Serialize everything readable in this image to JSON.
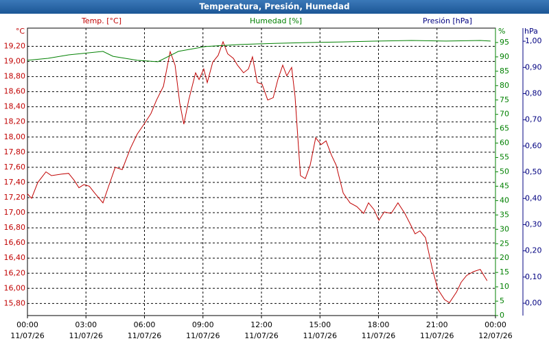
{
  "chart_data": {
    "type": "line",
    "title": "Temperatura, Presión, Humedad",
    "x": [
      0,
      0.21,
      0.53,
      0.95,
      1.23,
      1.76,
      2.11,
      2.39,
      2.64,
      2.89,
      3.17,
      3.45,
      3.87,
      4.15,
      4.5,
      4.86,
      5.28,
      5.63,
      5.98,
      6.33,
      6.62,
      6.97,
      7.32,
      7.57,
      7.81,
      8.02,
      8.27,
      8.62,
      8.8,
      9.04,
      9.22,
      9.5,
      9.78,
      10.03,
      10.27,
      10.56,
      10.77,
      11.08,
      11.33,
      11.54,
      11.79,
      12.03,
      12.32,
      12.6,
      12.84,
      13.09,
      13.3,
      13.55,
      13.72,
      14,
      14.25,
      14.5,
      14.78,
      15.06,
      15.31,
      15.59,
      15.83,
      16.19,
      16.54,
      16.89,
      17.24,
      17.49,
      17.77,
      18.02,
      18.3,
      18.65,
      19,
      19.35,
      19.63,
      19.88,
      20.13,
      20.41,
      20.76,
      21.04,
      21.39,
      21.64,
      22,
      22.24,
      22.52,
      22.87,
      23.22,
      23.57
    ],
    "series": [
      {
        "name": "Temp. [°C]",
        "unit": "°C",
        "color": "#c00000",
        "axis": "y",
        "values": [
          17.25,
          17.19,
          17.4,
          17.54,
          17.49,
          17.51,
          17.52,
          17.43,
          17.33,
          17.37,
          17.35,
          17.26,
          17.13,
          17.34,
          17.6,
          17.57,
          17.85,
          18.04,
          18.17,
          18.31,
          18.49,
          18.67,
          19.13,
          18.95,
          18.45,
          18.17,
          18.49,
          18.85,
          18.76,
          18.9,
          18.72,
          18.99,
          19.08,
          19.26,
          19.1,
          19.04,
          18.95,
          18.85,
          18.9,
          19.06,
          18.72,
          18.7,
          18.49,
          18.52,
          18.76,
          18.95,
          18.81,
          18.92,
          18.54,
          17.49,
          17.45,
          17.63,
          17.99,
          17.9,
          17.95,
          17.76,
          17.63,
          17.26,
          17.13,
          17.08,
          16.99,
          17.13,
          17.04,
          16.9,
          17.01,
          16.99,
          17.13,
          16.99,
          16.85,
          16.72,
          16.76,
          16.67,
          16.26,
          15.99,
          15.85,
          15.81,
          15.95,
          16.08,
          16.17,
          16.22,
          16.25,
          16.1
        ]
      },
      {
        "name": "Humedad [%]",
        "unit": "%",
        "color": "#008000",
        "axis": "y2",
        "x": [
          0,
          1.06,
          2.11,
          3.87,
          4.39,
          5.63,
          6.69,
          7.74,
          9.15,
          10.91,
          12.67,
          14.43,
          16.19,
          17.95,
          19.7,
          21.46,
          23.22,
          23.75
        ],
        "values": [
          88.8,
          89.5,
          90.7,
          91.9,
          90.2,
          88.8,
          88.3,
          91.9,
          93.6,
          94.3,
          94.7,
          95,
          95.2,
          95.5,
          95.7,
          95.5,
          95.7,
          95.5
        ]
      }
    ],
    "y3": {
      "name": "Presión [hPa]",
      "unit": "hPa",
      "color": "#000080",
      "lim": [
        -0.047,
        1.05
      ],
      "ticks": [
        {
          "value": 0,
          "label": "0,00"
        },
        {
          "value": 0.1,
          "label": "0,10"
        },
        {
          "value": 0.2,
          "label": "0,20"
        },
        {
          "value": 0.3,
          "label": "0,30"
        },
        {
          "value": 0.4,
          "label": "0,40"
        },
        {
          "value": 0.5,
          "label": "0,50"
        },
        {
          "value": 0.6,
          "label": "0,60"
        },
        {
          "value": 0.7,
          "label": "0,70"
        },
        {
          "value": 0.8,
          "label": "0,80"
        },
        {
          "value": 0.9,
          "label": "0,90"
        },
        {
          "value": 1,
          "label": "1,00"
        }
      ]
    },
    "xlim": [
      0,
      24
    ],
    "xticks": [
      {
        "value": 0,
        "label": "00:00"
      },
      {
        "value": 3,
        "label": "03:00"
      },
      {
        "value": 6,
        "label": "06:00"
      },
      {
        "value": 9,
        "label": "09:00"
      },
      {
        "value": 12,
        "label": "12:00"
      },
      {
        "value": 15,
        "label": "15:00"
      },
      {
        "value": 18,
        "label": "18:00"
      },
      {
        "value": 21,
        "label": "21:00"
      },
      {
        "value": 24,
        "label": "00:00"
      }
    ],
    "xtick_dates": [
      "11/07/26",
      "11/07/26",
      "11/07/26",
      "11/07/26",
      "11/07/26",
      "11/07/26",
      "11/07/26",
      "11/07/26",
      "12/07/26"
    ],
    "ylim": [
      15.64,
      19.44
    ],
    "yticks": [
      {
        "value": 15.8,
        "label": "15,80"
      },
      {
        "value": 16,
        "label": "16,00"
      },
      {
        "value": 16.2,
        "label": "16,20"
      },
      {
        "value": 16.4,
        "label": "16,40"
      },
      {
        "value": 16.6,
        "label": "16,60"
      },
      {
        "value": 16.8,
        "label": "16,80"
      },
      {
        "value": 17,
        "label": "17,00"
      },
      {
        "value": 17.2,
        "label": "17,20"
      },
      {
        "value": 17.4,
        "label": "17,40"
      },
      {
        "value": 17.6,
        "label": "17,60"
      },
      {
        "value": 17.8,
        "label": "17,80"
      },
      {
        "value": 18,
        "label": "18,00"
      },
      {
        "value": 18.2,
        "label": "18,20"
      },
      {
        "value": 18.4,
        "label": "18,40"
      },
      {
        "value": 18.6,
        "label": "18,60"
      },
      {
        "value": 18.8,
        "label": "18,80"
      },
      {
        "value": 19,
        "label": "19,00"
      },
      {
        "value": 19.2,
        "label": "19,20"
      }
    ],
    "y2lim": [
      0,
      100
    ],
    "y2ticks": [
      0,
      5,
      10,
      15,
      20,
      25,
      30,
      35,
      40,
      45,
      50,
      55,
      60,
      65,
      70,
      75,
      80,
      85,
      90,
      95
    ],
    "grid": true
  }
}
